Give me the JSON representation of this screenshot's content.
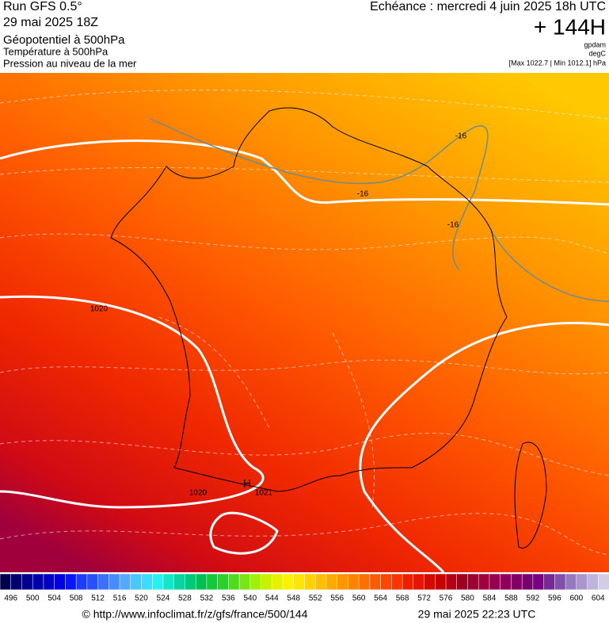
{
  "header": {
    "run": "Run GFS 0.5°",
    "run_date": "29 mai 2025 18Z",
    "field_1": "Géopotentiel à 500hPa",
    "field_2": "Température à 500hPa",
    "field_3": "Pression au niveau de la mer",
    "valid_time": "Echéance : mercredi 4 juin 2025 18h UTC",
    "lead_time": "+ 144H",
    "unit_1": "gpdam",
    "unit_2": "degC",
    "pressure_range": "[Max 1022.7 | Min 1012.1] hPa"
  },
  "map": {
    "labels": [
      "1020",
      "1020",
      "1021",
      "H",
      "-16",
      "-16",
      "-16"
    ]
  },
  "legend": {
    "ticks": [
      496,
      500,
      504,
      508,
      512,
      516,
      520,
      524,
      528,
      532,
      536,
      540,
      544,
      548,
      552,
      556,
      560,
      564,
      568,
      572,
      576,
      580,
      584,
      588,
      592,
      596,
      600,
      604
    ],
    "colors": [
      "#000050",
      "#00006e",
      "#00008c",
      "#0000aa",
      "#0000c8",
      "#0000e6",
      "#0a14ff",
      "#1e3cff",
      "#2850ff",
      "#3c6eff",
      "#468cff",
      "#50aaff",
      "#46c8ff",
      "#3cdcff",
      "#28f0f0",
      "#14e6c8",
      "#0ad2a0",
      "#00c878",
      "#00be50",
      "#14c83c",
      "#28d228",
      "#50dc1e",
      "#78e614",
      "#a0f00a",
      "#c8f000",
      "#e6f000",
      "#fff000",
      "#ffe600",
      "#ffd200",
      "#ffbe00",
      "#ffaa00",
      "#ff9600",
      "#ff8200",
      "#ff6e00",
      "#ff5a00",
      "#ff4600",
      "#ff3200",
      "#f01e00",
      "#e61400",
      "#d20a00",
      "#c80000",
      "#b40014",
      "#a0001e",
      "#a00032",
      "#a0003c",
      "#960050",
      "#8c005a",
      "#820064",
      "#78006e",
      "#780082",
      "#7a2896",
      "#8250aa",
      "#9678be",
      "#aa96cc",
      "#beb4dc",
      "#d2cce6"
    ]
  },
  "footer": {
    "url": "© http://www.infoclimat.fr/z/gfs/france/500/144",
    "issued": "29 mai 2025 22:23 UTC"
  }
}
